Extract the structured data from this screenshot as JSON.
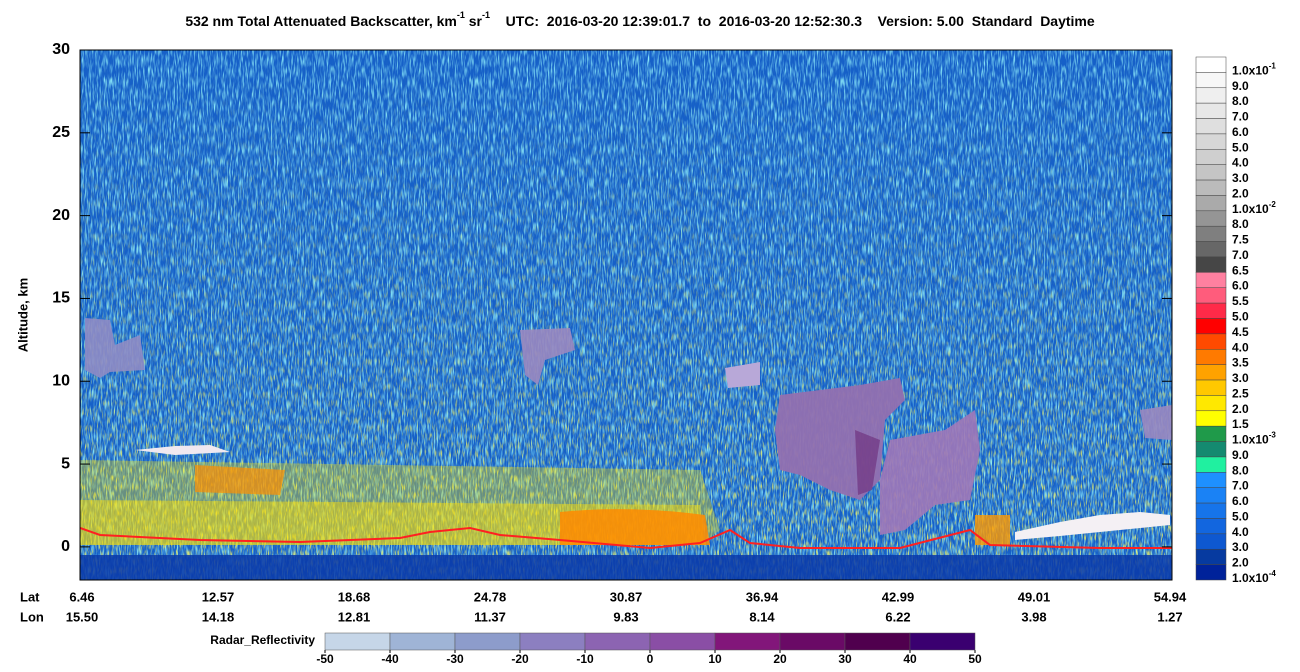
{
  "chart_data": {
    "type": "curtain",
    "title_prefix": "532 nm Total Attenuated Backscatter, km",
    "title_exp1": "-1",
    "title_unit2": "sr",
    "title_exp2": "-1",
    "time_range": "UTC:  2016-03-20 12:39:01.7  to  2016-03-20 12:52:30.3",
    "version": "Version: 5.00  Standard  Daytime",
    "y_label": "Altitude, km",
    "ylim": [
      -2,
      30
    ],
    "yticks": [
      0,
      5,
      10,
      15,
      20,
      25,
      30
    ],
    "lat_label": "Lat",
    "lon_label": "Lon",
    "lat": [
      "6.46",
      "12.57",
      "18.68",
      "24.78",
      "30.87",
      "36.94",
      "42.99",
      "49.01",
      "54.94"
    ],
    "lon": [
      "15.50",
      "14.18",
      "12.81",
      "11.37",
      "9.83",
      "8.14",
      "6.22",
      "3.98",
      "1.27"
    ],
    "colorbar": [
      {
        "label": "1.0x10",
        "exp": "-1",
        "color": "#ffffff"
      },
      {
        "label": "9.0",
        "color": "#f7f7f7"
      },
      {
        "label": "8.0",
        "color": "#efefef"
      },
      {
        "label": "7.0",
        "color": "#e7e7e7"
      },
      {
        "label": "6.0",
        "color": "#dfdfdf"
      },
      {
        "label": "5.0",
        "color": "#d7d7d7"
      },
      {
        "label": "4.0",
        "color": "#cfcfcf"
      },
      {
        "label": "3.0",
        "color": "#c5c5c5"
      },
      {
        "label": "2.0",
        "color": "#bbbbbb"
      },
      {
        "label": "1.0x10",
        "exp": "-2",
        "color": "#aaaaaa"
      },
      {
        "label": "8.0",
        "color": "#959595"
      },
      {
        "label": "7.5",
        "color": "#7f7f7f"
      },
      {
        "label": "7.0",
        "color": "#676767"
      },
      {
        "label": "6.5",
        "color": "#464646"
      },
      {
        "label": "6.0",
        "color": "#ff80a0"
      },
      {
        "label": "5.5",
        "color": "#ff5c7c"
      },
      {
        "label": "5.0",
        "color": "#ff2a48"
      },
      {
        "label": "4.5",
        "color": "#ff0000"
      },
      {
        "label": "4.0",
        "color": "#ff4a00"
      },
      {
        "label": "3.5",
        "color": "#ff7a00"
      },
      {
        "label": "3.0",
        "color": "#ffa200"
      },
      {
        "label": "2.5",
        "color": "#ffc800"
      },
      {
        "label": "2.0",
        "color": "#ffe800"
      },
      {
        "label": "1.5",
        "color": "#ffff00"
      },
      {
        "label": "1.0x10",
        "exp": "-3",
        "color": "#1f9a4a"
      },
      {
        "label": "9.0",
        "color": "#148a70"
      },
      {
        "label": "8.0",
        "color": "#20f0a0"
      },
      {
        "label": "7.0",
        "color": "#1e90ff"
      },
      {
        "label": "6.0",
        "color": "#1a82f5"
      },
      {
        "label": "5.0",
        "color": "#1674ea"
      },
      {
        "label": "4.0",
        "color": "#1266df"
      },
      {
        "label": "3.0",
        "color": "#0e58d0"
      },
      {
        "label": "2.0",
        "color": "#063aa0"
      },
      {
        "label": "1.0x10",
        "exp": "-4",
        "color": "#00229a"
      }
    ],
    "radar_label": "Radar_Reflectivity",
    "radar_ticks": [
      -50,
      -40,
      -30,
      -20,
      -10,
      0,
      10,
      20,
      30,
      40,
      50
    ],
    "radar_colors": [
      "#c6d6e8",
      "#9fb4d6",
      "#8d9ccb",
      "#8c7fc0",
      "#8c64b2",
      "#8a4ea5",
      "#82167a",
      "#6a0a66",
      "#50004e",
      "#3a0070"
    ]
  }
}
